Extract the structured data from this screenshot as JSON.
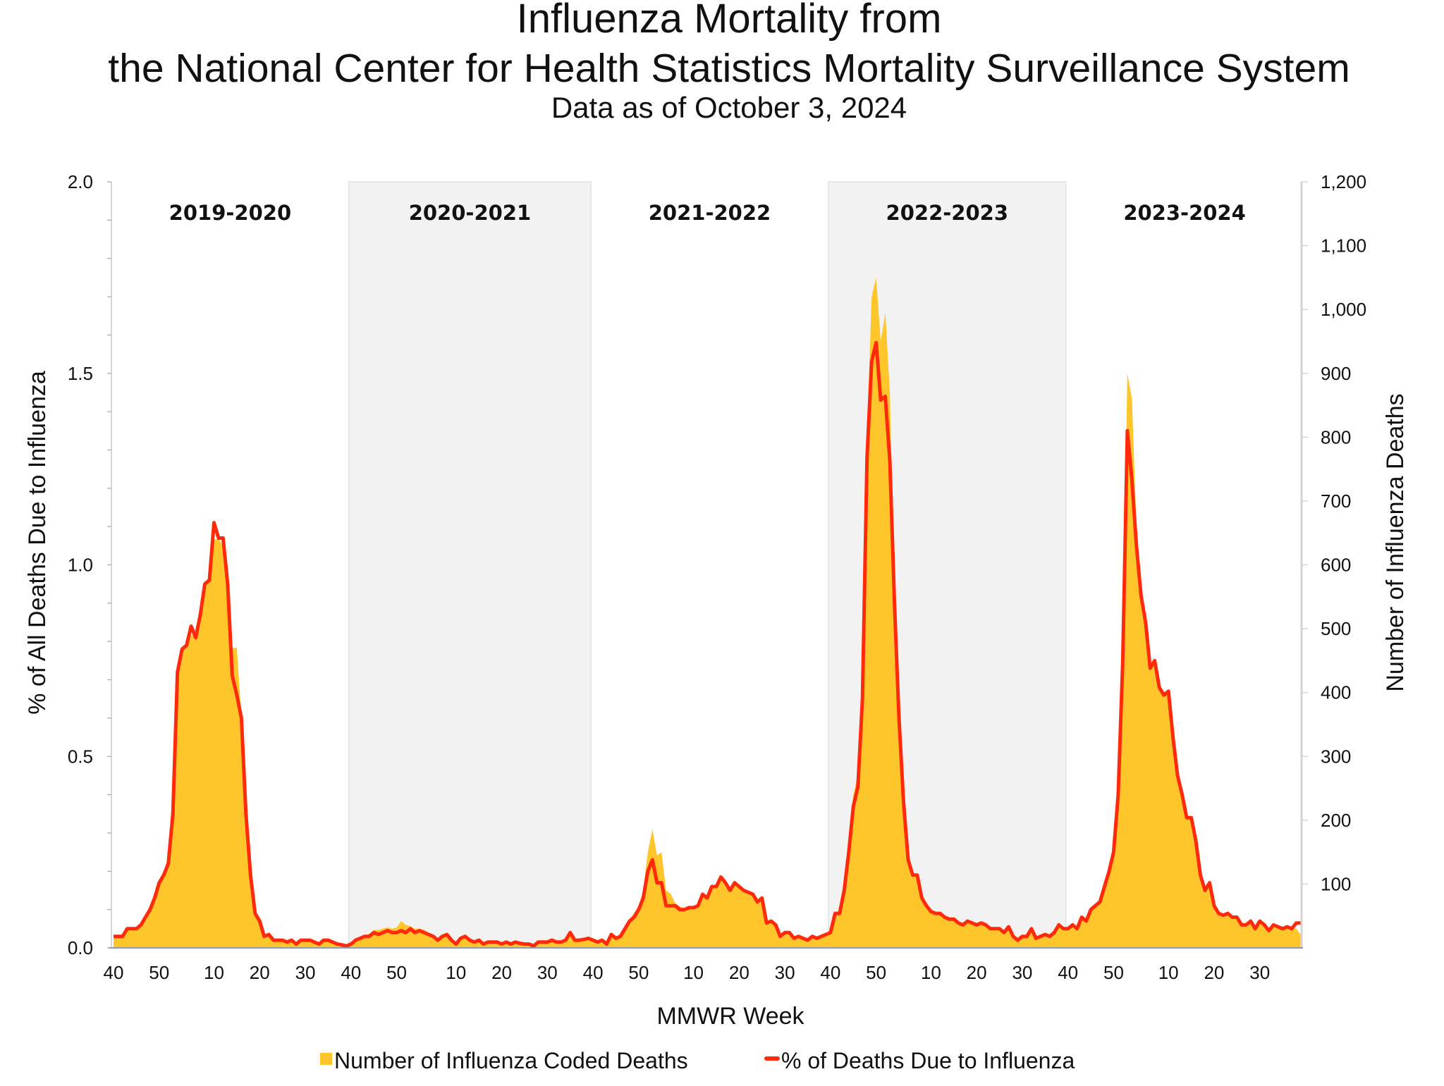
{
  "chart_data": {
    "type": "area+line",
    "title": "Influenza Mortality from",
    "title_line2": "the National Center for Health Statistics Mortality Surveillance System",
    "subtitle": "Data as of October 3, 2024",
    "xlabel": "MMWR Week",
    "ylabel_left": "% of All Deaths Due to Influenza",
    "ylabel_right": "Number of Influenza Deaths",
    "ylim_left": [
      0,
      2.0
    ],
    "ylim_right": [
      0,
      1200
    ],
    "y_ticks_left": [
      "0.0",
      "0.5",
      "1.0",
      "1.5",
      "2.0"
    ],
    "y_ticks_right": [
      "100",
      "200",
      "300",
      "400",
      "500",
      "600",
      "700",
      "800",
      "900",
      "1,000",
      "1,100",
      "1,200"
    ],
    "x_tick_weeks": [
      "40",
      "50",
      "10",
      "20",
      "30"
    ],
    "legend_position": "bottom",
    "colors": {
      "deaths_area": "#FFC62B",
      "pct_line": "#FF2A0A",
      "shade": "#F2F2F3"
    },
    "seasons": [
      {
        "label": "2019-2020",
        "shaded": false,
        "pct": [
          0.03,
          0.03,
          0.03,
          0.05,
          0.05,
          0.05,
          0.06,
          0.08,
          0.1,
          0.13,
          0.17,
          0.19,
          0.22,
          0.35,
          0.72,
          0.78,
          0.79,
          0.84,
          0.81,
          0.87,
          0.95,
          0.96,
          1.11,
          1.07,
          1.07,
          0.95,
          0.71,
          0.66,
          0.6,
          0.35,
          0.19,
          0.09,
          0.07,
          0.03,
          0.035,
          0.02,
          0.02,
          0.02,
          0.015,
          0.02,
          0.01,
          0.02,
          0.02,
          0.02,
          0.015,
          0.01,
          0.02,
          0.02,
          0.015,
          0.01,
          0.008,
          0.005
        ],
        "deaths": [
          18,
          18,
          18,
          30,
          30,
          30,
          36,
          48,
          60,
          78,
          102,
          114,
          132,
          210,
          430,
          470,
          470,
          490,
          490,
          520,
          560,
          580,
          640,
          640,
          630,
          560,
          470,
          470,
          360,
          210,
          114,
          54,
          42,
          18,
          21,
          12,
          12,
          12,
          9,
          12,
          6,
          12,
          12,
          12,
          9,
          6,
          12,
          12,
          9,
          6,
          5,
          3
        ]
      },
      {
        "label": "2020-2021",
        "shaded": true,
        "pct": [
          0.01,
          0.02,
          0.025,
          0.03,
          0.03,
          0.04,
          0.035,
          0.04,
          0.045,
          0.04,
          0.04,
          0.045,
          0.04,
          0.05,
          0.04,
          0.045,
          0.04,
          0.035,
          0.03,
          0.02,
          0.03,
          0.035,
          0.02,
          0.01,
          0.025,
          0.03,
          0.02,
          0.015,
          0.02,
          0.01,
          0.015,
          0.015,
          0.015,
          0.01,
          0.015,
          0.01,
          0.015,
          0.012,
          0.01,
          0.01,
          0.005,
          0.015,
          0.015,
          0.015,
          0.02,
          0.015,
          0.015,
          0.02,
          0.04,
          0.02,
          0.02,
          0.022,
          0.025
        ],
        "deaths": [
          6,
          12,
          15,
          20,
          22,
          28,
          28,
          30,
          32,
          30,
          32,
          42,
          36,
          34,
          30,
          30,
          28,
          24,
          20,
          14,
          18,
          22,
          14,
          8,
          16,
          18,
          12,
          10,
          12,
          8,
          10,
          10,
          10,
          8,
          10,
          8,
          10,
          8,
          7,
          7,
          4,
          9,
          9,
          9,
          12,
          9,
          9,
          12,
          24,
          12,
          12,
          13,
          15
        ]
      },
      {
        "label": "2021-2022",
        "shaded": false,
        "pct": [
          0.02,
          0.015,
          0.02,
          0.01,
          0.035,
          0.025,
          0.03,
          0.05,
          0.07,
          0.08,
          0.1,
          0.13,
          0.2,
          0.23,
          0.17,
          0.17,
          0.11,
          0.11,
          0.11,
          0.1,
          0.1,
          0.105,
          0.105,
          0.11,
          0.14,
          0.13,
          0.16,
          0.16,
          0.185,
          0.17,
          0.15,
          0.17,
          0.16,
          0.15,
          0.145,
          0.14,
          0.12,
          0.13,
          0.065,
          0.07,
          0.06,
          0.03,
          0.04,
          0.04,
          0.025,
          0.03,
          0.025,
          0.02,
          0.03,
          0.025,
          0.03,
          0.035
        ],
        "deaths": [
          12,
          9,
          12,
          6,
          21,
          15,
          18,
          30,
          45,
          55,
          65,
          90,
          150,
          186,
          145,
          150,
          90,
          85,
          70,
          65,
          62,
          63,
          65,
          68,
          85,
          80,
          95,
          96,
          110,
          100,
          92,
          100,
          96,
          90,
          88,
          85,
          72,
          78,
          40,
          42,
          36,
          18,
          24,
          24,
          15,
          18,
          15,
          12,
          18,
          15,
          18,
          21
        ]
      },
      {
        "label": "2022-2023",
        "shaded": true,
        "pct": [
          0.04,
          0.09,
          0.09,
          0.15,
          0.25,
          0.37,
          0.42,
          0.65,
          1.28,
          1.53,
          1.58,
          1.43,
          1.44,
          1.27,
          0.9,
          0.6,
          0.38,
          0.23,
          0.19,
          0.19,
          0.13,
          0.11,
          0.095,
          0.09,
          0.09,
          0.08,
          0.075,
          0.075,
          0.065,
          0.06,
          0.07,
          0.065,
          0.06,
          0.065,
          0.06,
          0.05,
          0.05,
          0.05,
          0.04,
          0.055,
          0.03,
          0.02,
          0.03,
          0.03,
          0.05,
          0.025,
          0.03,
          0.035,
          0.03,
          0.04,
          0.06,
          0.05
        ],
        "deaths": [
          24,
          54,
          60,
          100,
          160,
          240,
          270,
          420,
          800,
          1020,
          1050,
          950,
          995,
          870,
          570,
          370,
          230,
          140,
          115,
          114,
          80,
          66,
          57,
          54,
          54,
          48,
          45,
          45,
          39,
          36,
          42,
          39,
          36,
          39,
          36,
          30,
          30,
          30,
          24,
          33,
          18,
          12,
          18,
          18,
          30,
          15,
          18,
          21,
          18,
          24,
          36,
          30
        ]
      },
      {
        "label": "2023-2024",
        "shaded": false,
        "pct": [
          0.05,
          0.06,
          0.05,
          0.08,
          0.07,
          0.1,
          0.11,
          0.12,
          0.16,
          0.2,
          0.25,
          0.4,
          0.75,
          1.35,
          1.22,
          1.05,
          0.92,
          0.85,
          0.73,
          0.75,
          0.68,
          0.66,
          0.67,
          0.55,
          0.45,
          0.4,
          0.34,
          0.34,
          0.28,
          0.19,
          0.15,
          0.17,
          0.11,
          0.09,
          0.085,
          0.09,
          0.08,
          0.08,
          0.06,
          0.06,
          0.07,
          0.05,
          0.07,
          0.06,
          0.045,
          0.06,
          0.055,
          0.05,
          0.055,
          0.05,
          0.065,
          0.065
        ],
        "deaths": [
          30,
          36,
          30,
          48,
          42,
          60,
          66,
          72,
          96,
          120,
          150,
          240,
          450,
          900,
          860,
          660,
          560,
          510,
          440,
          450,
          410,
          400,
          400,
          330,
          270,
          240,
          204,
          204,
          168,
          114,
          90,
          100,
          66,
          54,
          51,
          54,
          48,
          48,
          36,
          36,
          42,
          30,
          42,
          36,
          27,
          36,
          33,
          30,
          33,
          30,
          30,
          20
        ]
      }
    ],
    "series": [
      {
        "name": "Number of Influenza Coded Deaths",
        "axis": "right",
        "kind": "area"
      },
      {
        "name": "% of Deaths Due to Influenza",
        "axis": "left",
        "kind": "line"
      }
    ]
  }
}
